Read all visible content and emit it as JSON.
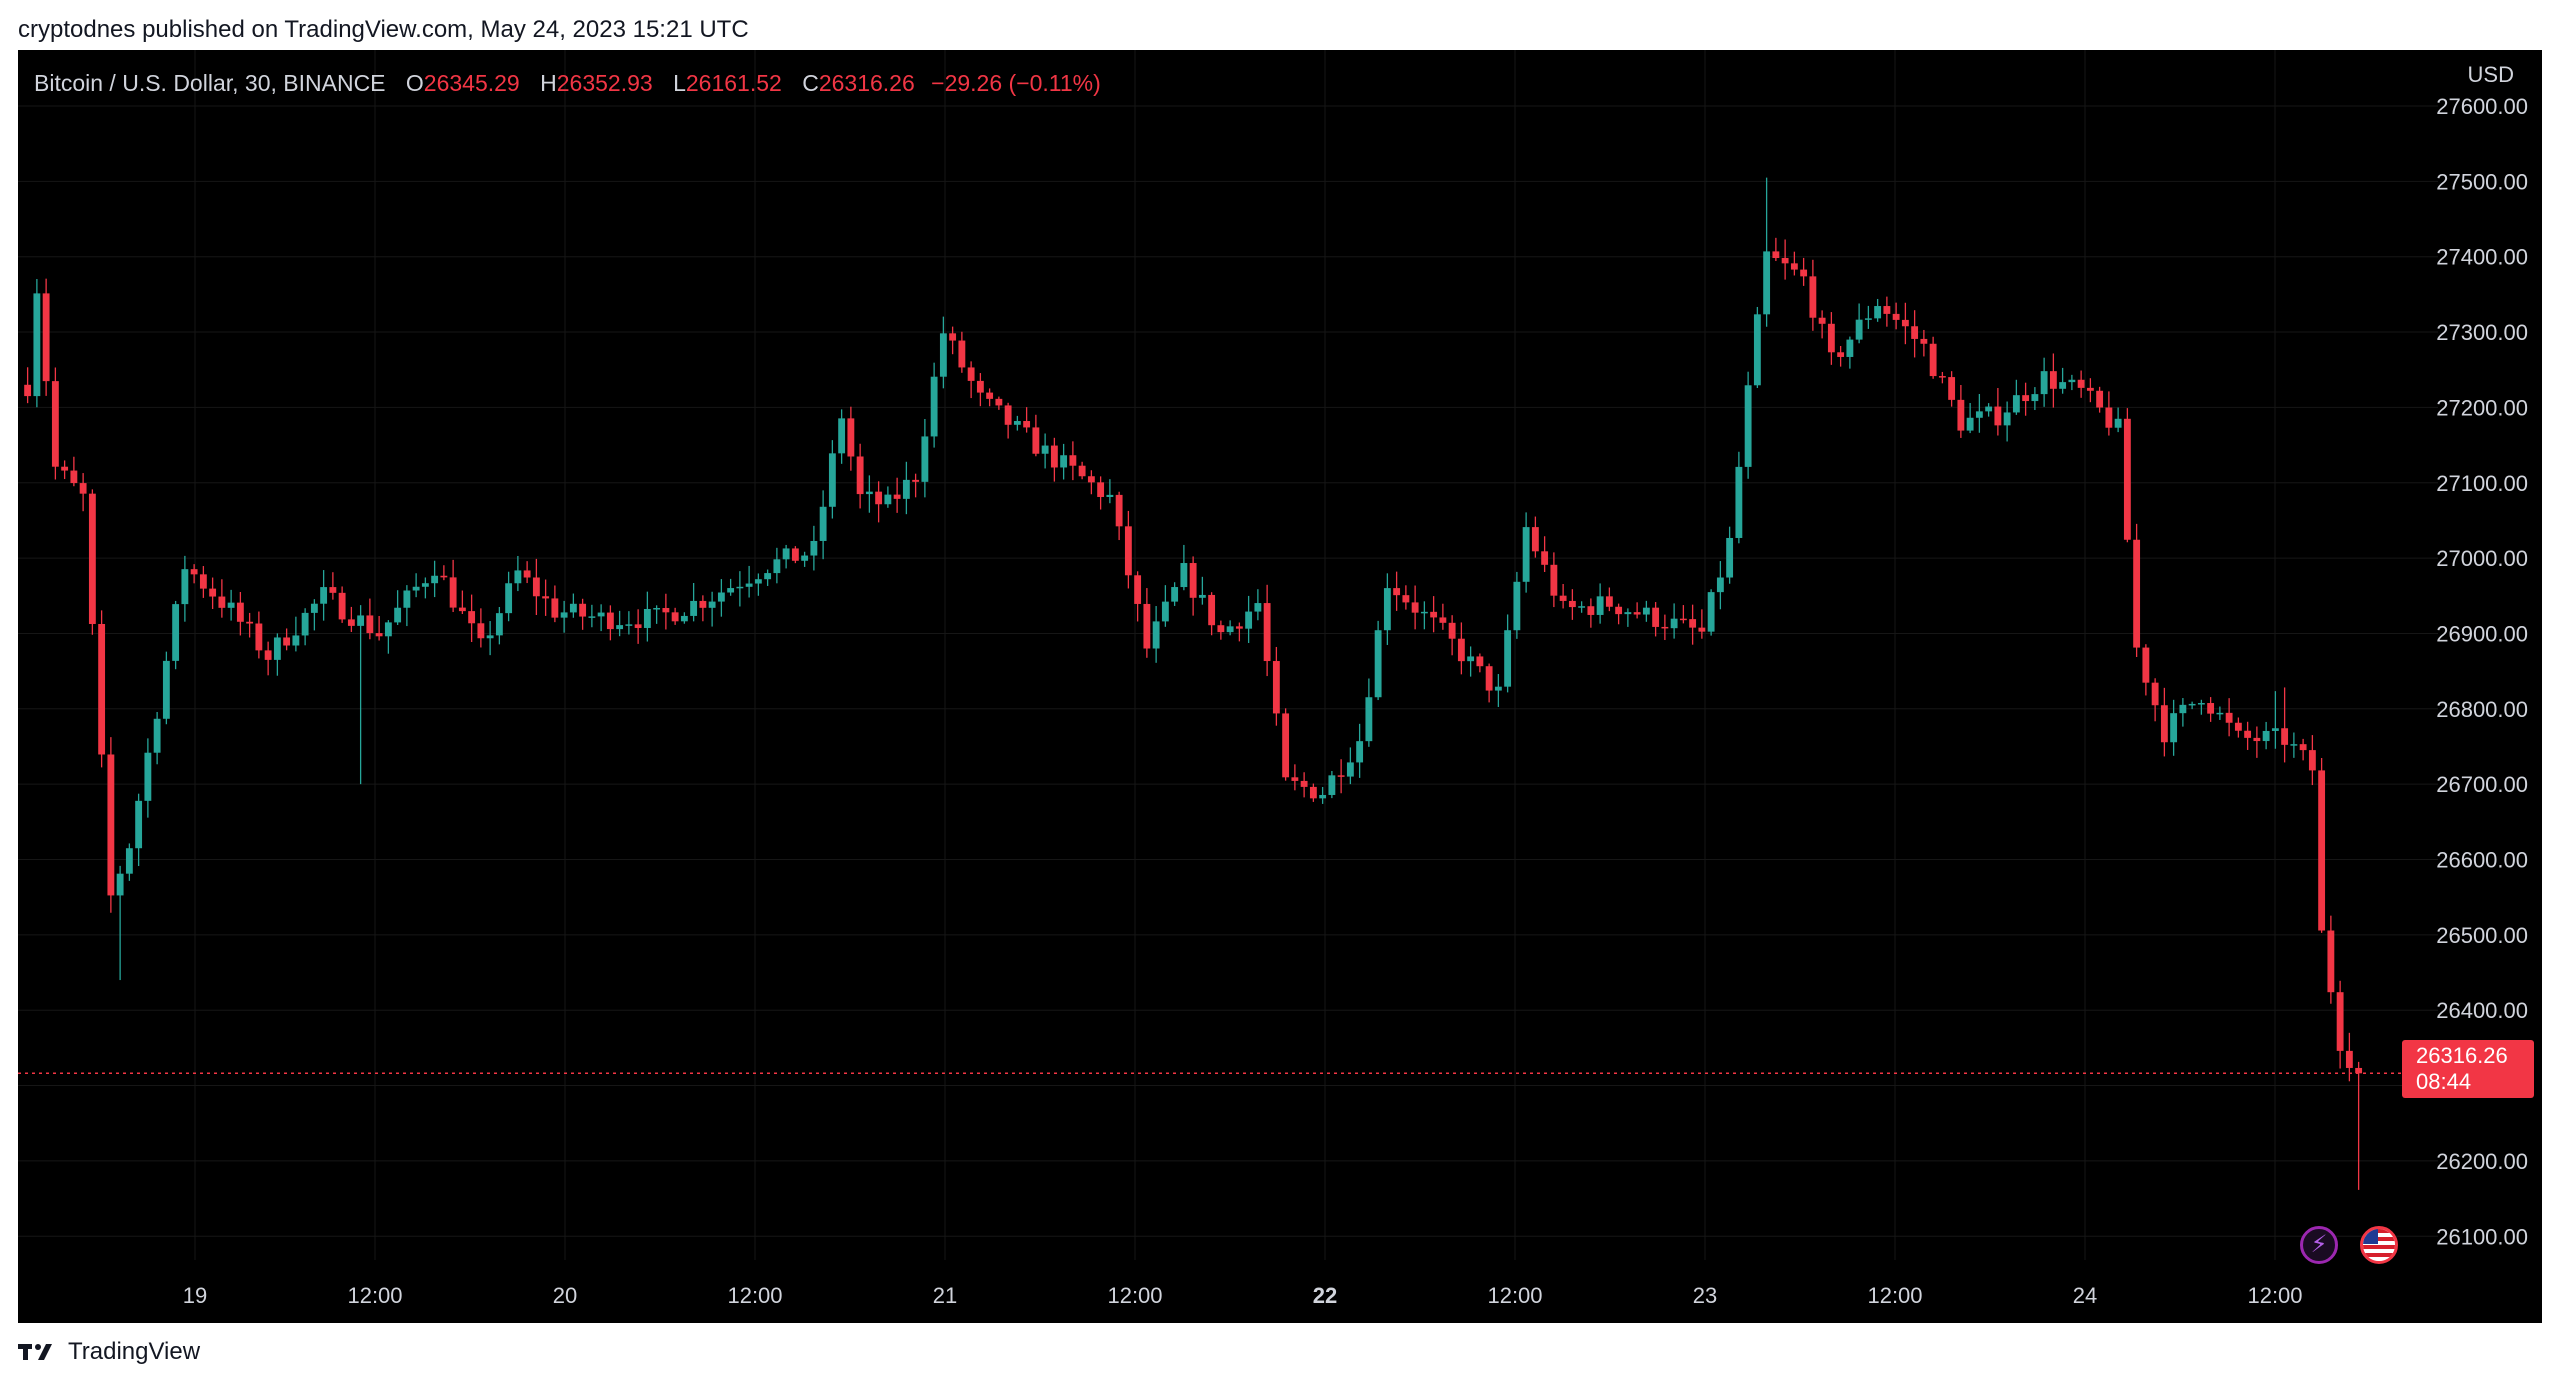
{
  "header": {
    "published_text": "cryptodnes published on TradingView.com, May 24, 2023 15:21 UTC"
  },
  "legend": {
    "symbol": "Bitcoin / U.S. Dollar, 30, BINANCE",
    "open_label": "O",
    "open_value": "26345.29",
    "high_label": "H",
    "high_value": "26352.93",
    "low_label": "L",
    "low_value": "26161.52",
    "close_label": "C",
    "close_value": "26316.26",
    "change": "−29.26 (−0.11%)"
  },
  "price_axis": {
    "currency": "USD",
    "ticks": [
      "27600.00",
      "27500.00",
      "27400.00",
      "27300.00",
      "27200.00",
      "27100.00",
      "27000.00",
      "26900.00",
      "26800.00",
      "26700.00",
      "26600.00",
      "26500.00",
      "26400.00",
      "26300.00",
      "26200.00",
      "26100.00"
    ]
  },
  "time_axis": {
    "ticks": [
      {
        "label": "19",
        "bold": false
      },
      {
        "label": "12:00",
        "bold": false
      },
      {
        "label": "20",
        "bold": false
      },
      {
        "label": "12:00",
        "bold": false
      },
      {
        "label": "21",
        "bold": false
      },
      {
        "label": "12:00",
        "bold": false
      },
      {
        "label": "22",
        "bold": true
      },
      {
        "label": "12:00",
        "bold": false
      },
      {
        "label": "23",
        "bold": false
      },
      {
        "label": "12:00",
        "bold": false
      },
      {
        "label": "24",
        "bold": false
      },
      {
        "label": "12:00",
        "bold": false
      }
    ]
  },
  "last_price": {
    "price": "26316.26",
    "countdown": "08:44"
  },
  "icons": {
    "bolt": "lightning-icon",
    "flag": "us-flag-icon"
  },
  "footer": {
    "brand": "TradingView"
  },
  "colors": {
    "up": "#26a69a",
    "down": "#f23645",
    "background": "#000000",
    "text": "#d1d4dc"
  },
  "chart_data": {
    "type": "candlestick",
    "title": "Bitcoin / U.S. Dollar, 30, BINANCE",
    "ylim": [
      26060,
      27660
    ],
    "interval": "30m",
    "last_close": 26316.26,
    "anchors": [
      {
        "t": 0,
        "p": 27230
      },
      {
        "t": 1,
        "p": 27360
      },
      {
        "t": 3,
        "p": 27120
      },
      {
        "t": 6,
        "p": 27080
      },
      {
        "t": 9,
        "p": 26550
      },
      {
        "t": 11,
        "p": 26620
      },
      {
        "t": 14,
        "p": 26800
      },
      {
        "t": 17,
        "p": 26990
      },
      {
        "t": 22,
        "p": 26930
      },
      {
        "t": 26,
        "p": 26870
      },
      {
        "t": 32,
        "p": 26950
      },
      {
        "t": 38,
        "p": 26900
      },
      {
        "t": 44,
        "p": 26990
      },
      {
        "t": 49,
        "p": 26880
      },
      {
        "t": 53,
        "p": 26980
      },
      {
        "t": 57,
        "p": 26930
      },
      {
        "t": 62,
        "p": 26920
      },
      {
        "t": 68,
        "p": 26920
      },
      {
        "t": 74,
        "p": 26950
      },
      {
        "t": 80,
        "p": 26990
      },
      {
        "t": 85,
        "p": 27010
      },
      {
        "t": 88,
        "p": 27190
      },
      {
        "t": 90,
        "p": 27080
      },
      {
        "t": 93,
        "p": 27070
      },
      {
        "t": 96,
        "p": 27110
      },
      {
        "t": 99,
        "p": 27300
      },
      {
        "t": 103,
        "p": 27210
      },
      {
        "t": 110,
        "p": 27140
      },
      {
        "t": 117,
        "p": 27080
      },
      {
        "t": 121,
        "p": 26880
      },
      {
        "t": 125,
        "p": 26980
      },
      {
        "t": 129,
        "p": 26900
      },
      {
        "t": 133,
        "p": 26940
      },
      {
        "t": 136,
        "p": 26700
      },
      {
        "t": 140,
        "p": 26690
      },
      {
        "t": 144,
        "p": 26760
      },
      {
        "t": 147,
        "p": 26970
      },
      {
        "t": 153,
        "p": 26900
      },
      {
        "t": 159,
        "p": 26820
      },
      {
        "t": 162,
        "p": 27040
      },
      {
        "t": 166,
        "p": 26930
      },
      {
        "t": 171,
        "p": 26940
      },
      {
        "t": 176,
        "p": 26920
      },
      {
        "t": 181,
        "p": 26900
      },
      {
        "t": 184,
        "p": 27020
      },
      {
        "t": 186,
        "p": 27220
      },
      {
        "t": 188,
        "p": 27400
      },
      {
        "t": 192,
        "p": 27370
      },
      {
        "t": 195,
        "p": 27260
      },
      {
        "t": 200,
        "p": 27340
      },
      {
        "t": 205,
        "p": 27280
      },
      {
        "t": 209,
        "p": 27180
      },
      {
        "t": 213,
        "p": 27190
      },
      {
        "t": 218,
        "p": 27240
      },
      {
        "t": 222,
        "p": 27220
      },
      {
        "t": 226,
        "p": 27170
      },
      {
        "t": 228,
        "p": 26880
      },
      {
        "t": 231,
        "p": 26770
      },
      {
        "t": 235,
        "p": 26820
      },
      {
        "t": 239,
        "p": 26760
      },
      {
        "t": 244,
        "p": 26760
      },
      {
        "t": 247,
        "p": 26720
      },
      {
        "t": 248,
        "p": 26500
      },
      {
        "t": 250,
        "p": 26360
      },
      {
        "t": 252,
        "p": 26316
      }
    ]
  }
}
